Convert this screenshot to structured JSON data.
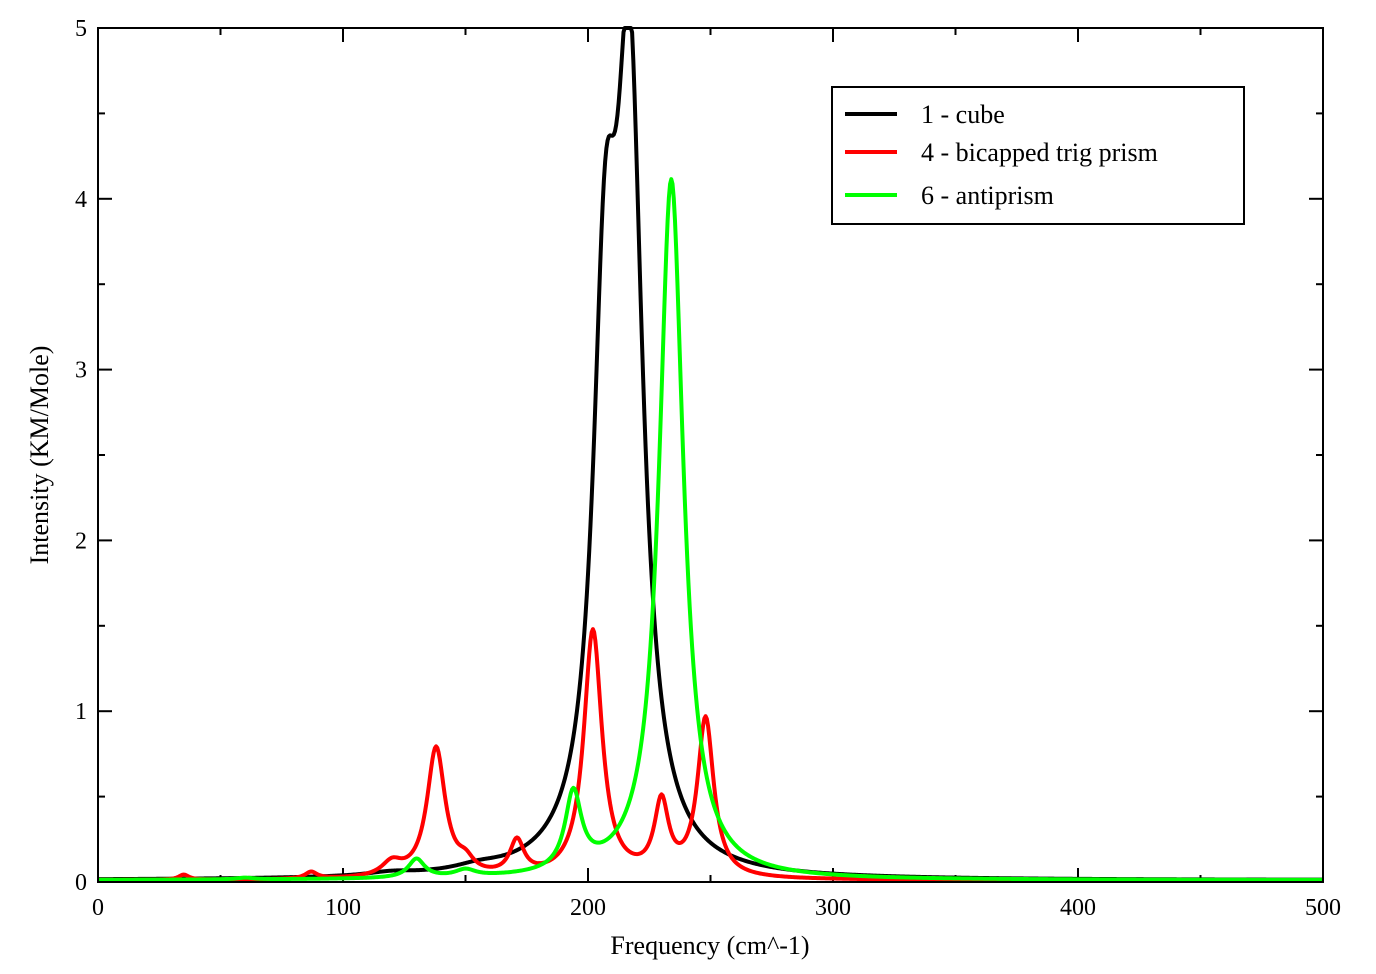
{
  "chart_data": {
    "type": "line",
    "title": "",
    "xlabel": "Frequency (cm^-1)",
    "ylabel": "Intensity (KM/Mole)",
    "xlim": [
      0,
      500
    ],
    "ylim": [
      0,
      5
    ],
    "x_major_ticks": [
      0,
      100,
      200,
      300,
      400,
      500
    ],
    "y_major_ticks": [
      0,
      1,
      2,
      3,
      4,
      5
    ],
    "x_minor_step": 50,
    "y_minor_step": 0.5,
    "grid": false,
    "legend_position": "top-right",
    "baseline": 0.01,
    "series": [
      {
        "name": "1 - cube",
        "color": "#000000",
        "peaks": [
          {
            "center": 120,
            "height": 0.02,
            "hwhm": 12
          },
          {
            "center": 155,
            "height": 0.03,
            "hwhm": 12
          },
          {
            "center": 207,
            "height": 2.9,
            "hwhm": 6
          },
          {
            "center": 217,
            "height": 4.4,
            "hwhm": 6.5
          }
        ]
      },
      {
        "name": "4 - bicapped trig prism",
        "color": "#ff0000",
        "peaks": [
          {
            "center": 35,
            "height": 0.03,
            "hwhm": 2.5
          },
          {
            "center": 87,
            "height": 0.04,
            "hwhm": 3
          },
          {
            "center": 120,
            "height": 0.08,
            "hwhm": 5
          },
          {
            "center": 138,
            "height": 0.76,
            "hwhm": 4.5
          },
          {
            "center": 150,
            "height": 0.07,
            "hwhm": 4
          },
          {
            "center": 171,
            "height": 0.2,
            "hwhm": 3.5
          },
          {
            "center": 202,
            "height": 1.45,
            "hwhm": 4.5
          },
          {
            "center": 230,
            "height": 0.42,
            "hwhm": 3.5
          },
          {
            "center": 248,
            "height": 0.93,
            "hwhm": 4
          }
        ]
      },
      {
        "name": "6 - antiprism",
        "color": "#00ff00",
        "peaks": [
          {
            "center": 60,
            "height": 0.01,
            "hwhm": 4
          },
          {
            "center": 130,
            "height": 0.11,
            "hwhm": 4
          },
          {
            "center": 150,
            "height": 0.04,
            "hwhm": 5
          },
          {
            "center": 194,
            "height": 0.45,
            "hwhm": 4
          },
          {
            "center": 234,
            "height": 4.1,
            "hwhm": 6
          }
        ]
      }
    ]
  }
}
